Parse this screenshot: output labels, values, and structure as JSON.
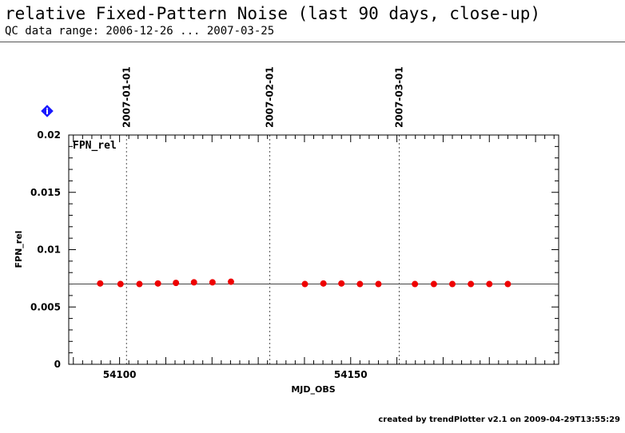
{
  "header": {
    "title": "relative Fixed-Pattern Noise (last 90 days, close-up)",
    "subtitle": "QC data range: 2006-12-26 ... 2007-03-25"
  },
  "footer": {
    "credit": "created by trendPlotter v2.1 on 2009-04-29T13:55:29"
  },
  "info_marker": {
    "icon": "info-diamond-icon",
    "label": "i",
    "color": "#1a1aff"
  },
  "chart_data": {
    "type": "scatter",
    "title": "",
    "xlabel": "MJD_OBS",
    "ylabel": "FPN_rel",
    "panel_label": "FPN_rel",
    "xlim": [
      54089,
      54195
    ],
    "ylim": [
      0,
      0.02
    ],
    "xticks": [
      54100,
      54150
    ],
    "yticks": [
      0,
      0.005,
      0.01,
      0.015,
      0.02
    ],
    "ytick_labels": [
      "0",
      "0.005",
      "0.01",
      "0.015",
      "0.02"
    ],
    "reference_line": 0.007,
    "month_markers": [
      {
        "x": 54101.5,
        "label": "2007-01-01"
      },
      {
        "x": 54132.5,
        "label": "2007-02-01"
      },
      {
        "x": 54160.5,
        "label": "2007-03-01"
      }
    ],
    "series": [
      {
        "color": "#ee0000",
        "x": [
          54095.8,
          54100.2,
          54104.3,
          54108.3,
          54112.2,
          54116.1,
          54120.1,
          54124.1,
          54140.1,
          54144.1,
          54148.0,
          54152.0,
          54156.0,
          54163.9,
          54168.0,
          54172.0,
          54176.0,
          54180.0,
          54184.0
        ],
        "y": [
          0.00705,
          0.007,
          0.007,
          0.00705,
          0.0071,
          0.00715,
          0.00715,
          0.0072,
          0.007,
          0.00705,
          0.00705,
          0.007,
          0.007,
          0.007,
          0.007,
          0.007,
          0.007,
          0.007,
          0.007
        ]
      }
    ],
    "grid": false
  }
}
